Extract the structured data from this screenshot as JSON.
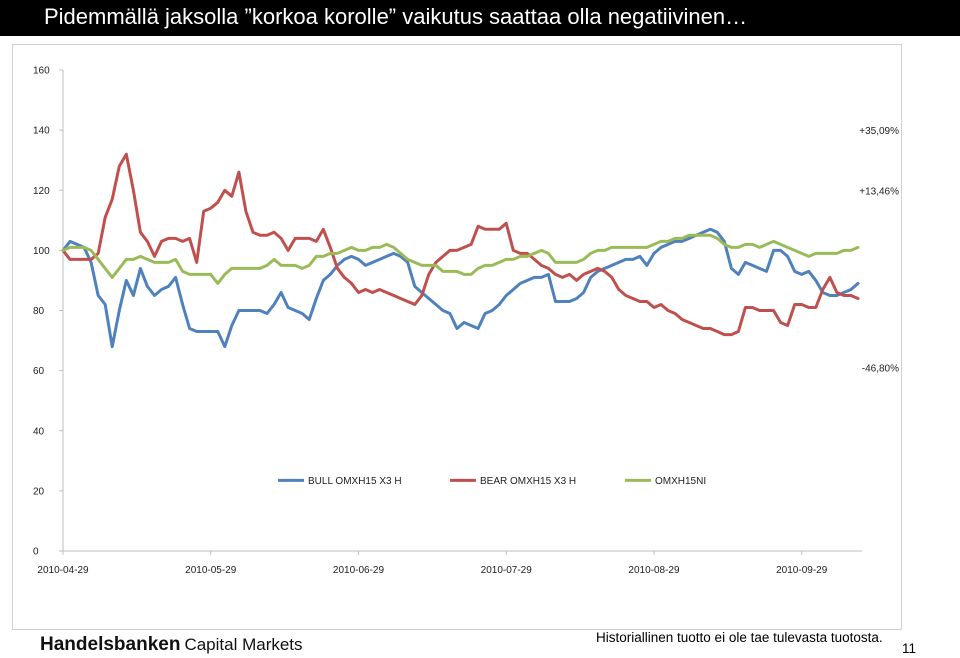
{
  "slide": {
    "title": "Pidemmällä jaksolla ”korkoa korolle” vaikutus saattaa olla negatiivinen…",
    "brand": "Handelsbanken",
    "brand_sub": "Capital Markets",
    "disclaimer": "Historiallinen tuotto ei ole tae tulevasta tuotosta.",
    "page_number": "11"
  },
  "chart_data": {
    "type": "line",
    "title": "",
    "xlabel": "",
    "ylabel": "",
    "ylim": [
      0,
      160
    ],
    "y_ticks": [
      0,
      20,
      40,
      60,
      80,
      100,
      120,
      140,
      160
    ],
    "x_tick_labels": [
      "2010-04-29",
      "2010-05-29",
      "2010-06-29",
      "2010-07-29",
      "2010-08-29",
      "2010-09-29"
    ],
    "x_tick_index": [
      0,
      21,
      42,
      63,
      84,
      105
    ],
    "num_points": 114,
    "grid": false,
    "legend_position": "bottom",
    "annotations": [
      "+35,09%",
      "+13,46%",
      "-46,80%"
    ],
    "series": [
      {
        "name": "BULL OMXH15 X3 H",
        "color": "#4f81bd",
        "values": [
          100,
          103,
          102,
          101,
          96,
          85,
          82,
          68,
          80,
          90,
          85,
          94,
          88,
          85,
          87,
          88,
          91,
          82,
          74,
          73,
          73,
          73,
          73,
          68,
          75,
          80,
          80,
          80,
          80,
          79,
          82,
          86,
          81,
          80,
          79,
          77,
          84,
          90,
          92,
          95,
          97,
          98,
          97,
          95,
          96,
          97,
          98,
          99,
          98,
          96,
          88,
          86,
          84,
          82,
          80,
          79,
          74,
          76,
          75,
          74,
          79,
          80,
          82,
          85,
          87,
          89,
          90,
          91,
          91,
          92,
          83,
          83,
          83,
          84,
          86,
          91,
          93,
          94,
          95,
          96,
          97,
          97,
          98,
          95,
          99,
          101,
          102,
          103,
          103,
          104,
          105,
          106,
          107,
          106,
          103,
          94,
          92,
          96,
          95,
          94,
          93,
          100,
          100,
          98,
          93,
          92,
          93,
          90,
          86,
          85,
          85,
          86,
          87,
          89
        ]
      },
      {
        "name": "BEAR OMXH15 X3 H",
        "color": "#c0504d",
        "values": [
          100,
          97,
          97,
          97,
          97,
          99,
          111,
          117,
          128,
          132,
          120,
          106,
          103,
          98,
          103,
          104,
          104,
          103,
          104,
          96,
          113,
          114,
          116,
          120,
          118,
          126,
          113,
          106,
          105,
          105,
          106,
          104,
          100,
          104,
          104,
          104,
          103,
          107,
          101,
          94,
          91,
          89,
          86,
          87,
          86,
          87,
          86,
          85,
          84,
          83,
          82,
          85,
          92,
          96,
          98,
          100,
          100,
          101,
          102,
          108,
          107,
          107,
          107,
          109,
          100,
          99,
          99,
          97,
          95,
          94,
          92,
          91,
          92,
          90,
          92,
          93,
          94,
          93,
          91,
          87,
          85,
          84,
          83,
          83,
          81,
          82,
          80,
          79,
          77,
          76,
          75,
          74,
          74,
          73,
          72,
          72,
          73,
          81,
          81,
          80,
          80,
          80,
          76,
          75,
          82,
          82,
          81,
          81,
          87,
          91,
          86,
          85,
          85,
          84
        ]
      },
      {
        "name": "OMXH15NI",
        "color": "#9bbb59",
        "values": [
          100,
          101,
          101,
          101,
          100,
          97,
          94,
          91,
          94,
          97,
          97,
          98,
          97,
          96,
          96,
          96,
          97,
          93,
          92,
          92,
          92,
          92,
          89,
          92,
          94,
          94,
          94,
          94,
          94,
          95,
          97,
          95,
          95,
          95,
          94,
          95,
          98,
          98,
          99,
          99,
          100,
          101,
          100,
          100,
          101,
          101,
          102,
          101,
          99,
          97,
          96,
          95,
          95,
          95,
          93,
          93,
          93,
          92,
          92,
          94,
          95,
          95,
          96,
          97,
          97,
          98,
          98,
          99,
          100,
          99,
          96,
          96,
          96,
          96,
          97,
          99,
          100,
          100,
          101,
          101,
          101,
          101,
          101,
          101,
          102,
          103,
          103,
          104,
          104,
          105,
          105,
          105,
          105,
          104,
          102,
          101,
          101,
          102,
          102,
          101,
          102,
          103,
          102,
          101,
          100,
          99,
          98,
          99,
          99,
          99,
          99,
          100,
          100,
          101
        ]
      }
    ]
  }
}
